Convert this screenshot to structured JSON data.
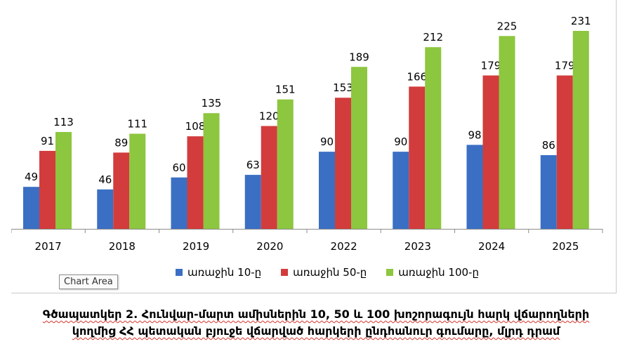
{
  "chart_data": {
    "type": "bar",
    "categories": [
      "2017",
      "2018",
      "2019",
      "2020",
      "2022",
      "2023",
      "2024",
      "2025"
    ],
    "series": [
      {
        "name": "առաջին 10-ը",
        "color": "#3a6fc4",
        "values": [
          49,
          46,
          60,
          63,
          90,
          90,
          98,
          86
        ]
      },
      {
        "name": "առաջին 50-ը",
        "color": "#d23c3c",
        "values": [
          91,
          89,
          108,
          120,
          153,
          166,
          179,
          179
        ]
      },
      {
        "name": "առաջին 100-ը",
        "color": "#8dc63f",
        "values": [
          113,
          111,
          135,
          151,
          189,
          212,
          225,
          231
        ]
      }
    ],
    "ylim": [
      0,
      240
    ],
    "grid": false,
    "legend_position": "bottom",
    "data_labels": true
  },
  "tooltip": "Chart Area",
  "caption": {
    "line1": "Գծապատկեր 2. Հունվար-մարտ ամիսներին 10, 50 և 100 խոշորագույն հարկ վճարողների",
    "line2": "կողմից ՀՀ պետական բյուջե վճարված հարկերի ընդհանուր գումարը, մլրդ դրամ"
  }
}
